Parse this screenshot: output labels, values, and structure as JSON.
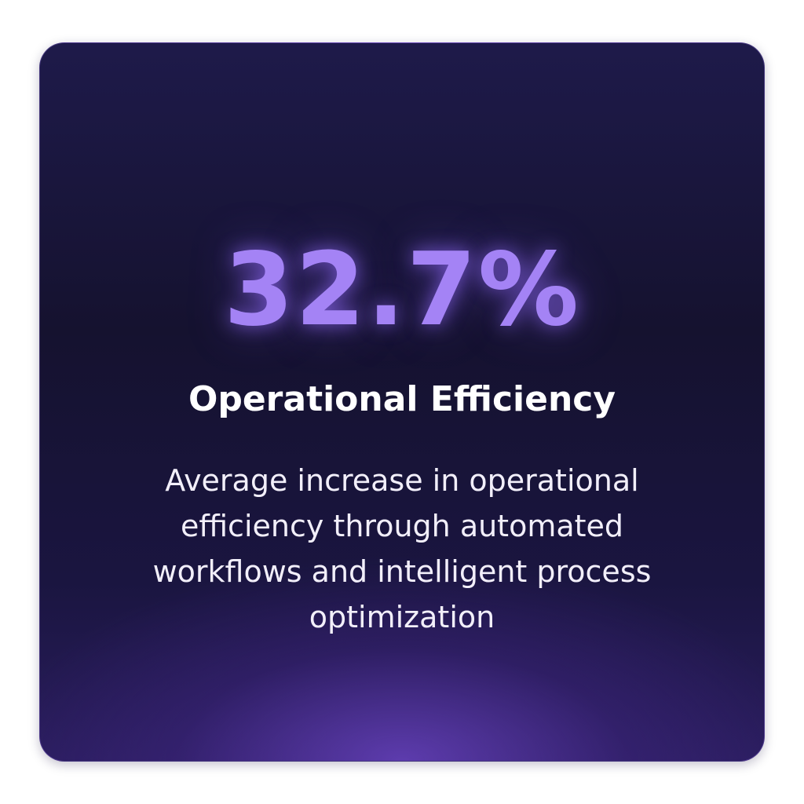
{
  "card": {
    "stat": "32.7%",
    "title": "Operational Efficiency",
    "description": "Average increase in operational efficiency through automated workflows and intelligent process optimization"
  }
}
